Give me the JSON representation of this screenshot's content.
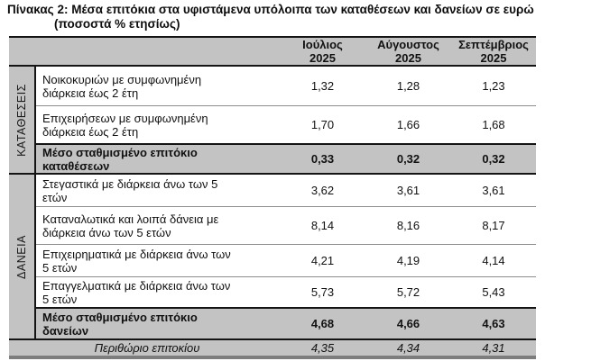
{
  "title": {
    "line1": "Πίνακας 2: Μέσα επιτόκια στα υφιστάμενα υπόλοιπα των καταθέσεων και δανείων σε ευρώ",
    "line2": "(ποσοστά % ετησίως)"
  },
  "columns": [
    {
      "month": "Ιούλιος",
      "year": "2025"
    },
    {
      "month": "Αύγουστος",
      "year": "2025"
    },
    {
      "month": "Σεπτέμβριος",
      "year": "2025"
    }
  ],
  "deposits": {
    "section_label": "ΚΑΤΑΘΕΣΕΙΣ",
    "rows": [
      {
        "line1": "Νοικοκυριών με συμφωνημένη",
        "line2": "διάρκεια έως 2 έτη",
        "values": [
          "1,32",
          "1,28",
          "1,23"
        ]
      },
      {
        "line1": "Επιχειρήσεων με συμφωνημένη",
        "line2": "διάρκεια έως 2 έτη",
        "values": [
          "1,70",
          "1,66",
          "1,68"
        ]
      },
      {
        "line1": "Μέσο σταθμισμένο επιτόκιο",
        "line2": "καταθέσεων",
        "values": [
          "0,33",
          "0,32",
          "0,32"
        ]
      }
    ]
  },
  "loans": {
    "section_label": "ΔΑΝΕΙΑ",
    "rows": [
      {
        "line1": "Στεγαστικά με διάρκεια άνω των 5",
        "line2": "ετών",
        "values": [
          "3,62",
          "3,61",
          "3,61"
        ]
      },
      {
        "line1": "Καταναλωτικά και λοιπά δάνεια με",
        "line2": "διάρκεια άνω των 5 ετών",
        "values": [
          "8,14",
          "8,16",
          "8,17"
        ]
      },
      {
        "line1": "Επιχειρηματικά με διάρκεια άνω των",
        "line2": "5 ετών",
        "values": [
          "4,21",
          "4,19",
          "4,14"
        ]
      },
      {
        "line1": "Επαγγελματικά με διάρκεια άνω των",
        "line2": "5 ετών",
        "values": [
          "5,73",
          "5,72",
          "5,43"
        ]
      },
      {
        "line1": "Μέσο σταθμισμένο επιτόκιο",
        "line2": "δανείων",
        "values": [
          "4,68",
          "4,66",
          "4,63"
        ]
      }
    ]
  },
  "margin_row": {
    "label": "Περιθώριο επιτοκίου",
    "values": [
      "4,35",
      "4,34",
      "4,31"
    ]
  },
  "colors": {
    "band_gray": "#c3c3c3",
    "line_black": "#141414",
    "line_thin_gray": "#8d8d8d",
    "bottom_bar_gray": "#7d7d7d"
  }
}
